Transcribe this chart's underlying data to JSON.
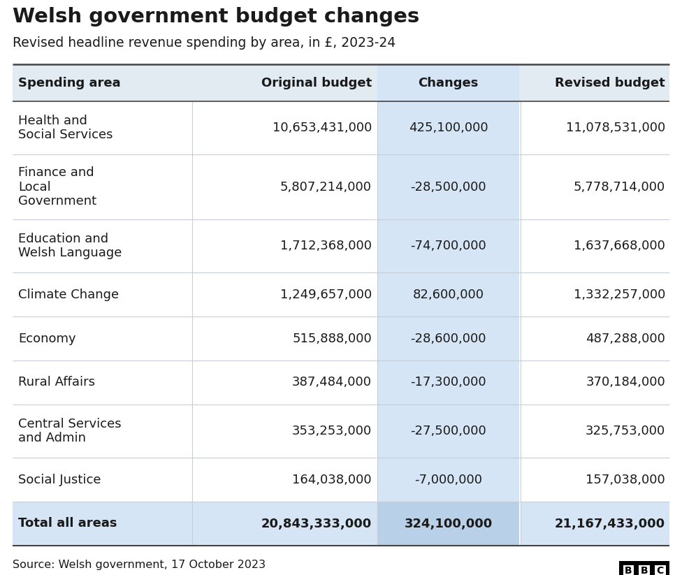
{
  "title": "Welsh government budget changes",
  "subtitle": "Revised headline revenue spending by area, in £, 2023-24",
  "source": "Source: Welsh government, 17 October 2023",
  "columns": [
    "Spending area",
    "Original budget",
    "Changes",
    "Revised budget"
  ],
  "rows": [
    [
      "Health and\nSocial Services",
      "10,653,431,000",
      "425,100,000",
      "11,078,531,000"
    ],
    [
      "Finance and\nLocal\nGovernment",
      "5,807,214,000",
      "-28,500,000",
      "5,778,714,000"
    ],
    [
      "Education and\nWelsh Language",
      "1,712,368,000",
      "-74,700,000",
      "1,637,668,000"
    ],
    [
      "Climate Change",
      "1,249,657,000",
      "82,600,000",
      "1,332,257,000"
    ],
    [
      "Economy",
      "515,888,000",
      "-28,600,000",
      "487,288,000"
    ],
    [
      "Rural Affairs",
      "387,484,000",
      "-17,300,000",
      "370,184,000"
    ],
    [
      "Central Services\nand Admin",
      "353,253,000",
      "-27,500,000",
      "325,753,000"
    ],
    [
      "Social Justice",
      "164,038,000",
      "-7,000,000",
      "157,038,000"
    ],
    [
      "Total all areas",
      "20,843,333,000",
      "324,100,000",
      "21,167,433,000"
    ]
  ],
  "header_bg": "#e2eaf2",
  "changes_col_bg": "#d5e5f5",
  "total_row_bg": "#d5e5f5",
  "total_changes_bg": "#b8d0e8",
  "line_color": "#c5ced8",
  "thick_line_color": "#444444",
  "text_color": "#1a1a1a",
  "title_fontsize": 21,
  "subtitle_fontsize": 13.5,
  "header_fontsize": 13,
  "cell_fontsize": 13,
  "source_fontsize": 11.5,
  "fig_width": 9.76,
  "fig_height": 8.23,
  "dpi": 100
}
